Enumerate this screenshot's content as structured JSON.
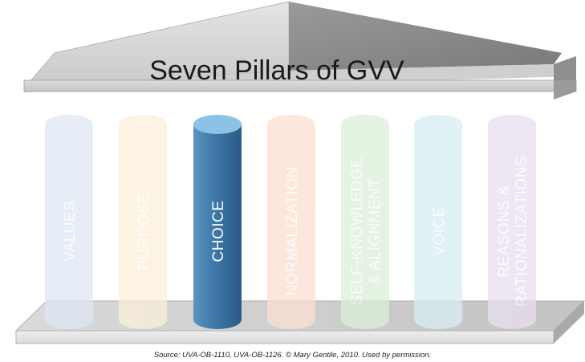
{
  "title": "Seven Pillars of GVV",
  "pillars": [
    {
      "lines": [
        "VALUES"
      ],
      "color": "#dfe7f5",
      "highlighted": false
    },
    {
      "lines": [
        "PURPOSE"
      ],
      "color": "#fbf0d9",
      "highlighted": false
    },
    {
      "lines": [
        "CHOICE"
      ],
      "color": "#3d78a8",
      "highlighted": true
    },
    {
      "lines": [
        "NORMALIZATION"
      ],
      "color": "#fbe0d1",
      "highlighted": false
    },
    {
      "lines": [
        "SELF-KNOWLEDGE",
        "& ALIGNMENT"
      ],
      "color": "#dcefd9",
      "highlighted": false
    },
    {
      "lines": [
        "VOICE"
      ],
      "color": "#d8eef4",
      "highlighted": false
    },
    {
      "lines": [
        "REASONS &",
        "RATIONALIZATIONS"
      ],
      "color": "#e9dff0",
      "highlighted": false
    }
  ],
  "source": "Source: UVA-OB-1110, UVA-OB-1126.  © Mary Gentile, 2010. Used by permission."
}
